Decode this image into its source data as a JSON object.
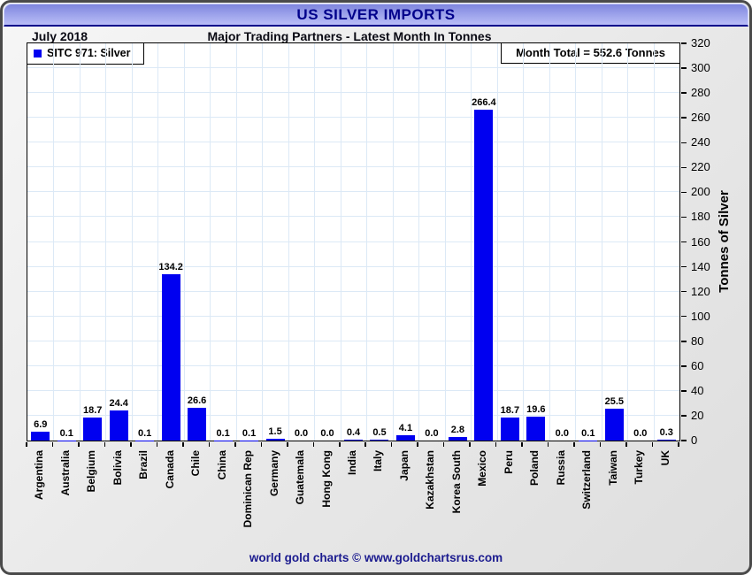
{
  "header": {
    "title": "US SILVER IMPORTS",
    "period": "July 2018",
    "subtitle": "Major Trading Partners - Latest Month In Tonnes",
    "month_total_label": "Month Total = 552.6 Tonnes"
  },
  "legend": {
    "label": "SITC 971: Silver"
  },
  "footer": {
    "credit": "world gold charts © www.goldchartsrus.com"
  },
  "colors": {
    "bar": "#0000f0",
    "accent_navy": "#00008b",
    "grid": "#dce9f6",
    "frame_border": "#4a4a4a"
  },
  "chart_data": {
    "type": "bar",
    "title": "US SILVER IMPORTS",
    "subtitle": "Major Trading Partners - Latest Month In Tonnes",
    "period": "July 2018",
    "month_total_tonnes": 552.6,
    "series_name": "SITC 971: Silver",
    "categories": [
      "Argentina",
      "Australia",
      "Belgium",
      "Bolivia",
      "Brazil",
      "Canada",
      "Chile",
      "China",
      "Dominican Rep",
      "Germany",
      "Guatemala",
      "Hong Kong",
      "India",
      "Italy",
      "Japan",
      "Kazakhstan",
      "Korea South",
      "Mexico",
      "Peru",
      "Poland",
      "Russia",
      "Switzerland",
      "Taiwan",
      "Turkey",
      "UK"
    ],
    "values": [
      6.9,
      0.1,
      18.7,
      24.4,
      0.1,
      134.2,
      26.6,
      0.1,
      0.1,
      1.5,
      0.0,
      0.0,
      0.4,
      0.5,
      4.1,
      0.0,
      2.8,
      266.4,
      18.7,
      19.6,
      0.0,
      0.1,
      25.5,
      0.0,
      0.3
    ],
    "ylabel": "Tonnes of Silver",
    "ylim": [
      0,
      320
    ],
    "ytick_step": 20,
    "grid": true,
    "legend_position": "top-left",
    "bar_color": "#0000f0",
    "value_label_decimals": 1
  }
}
